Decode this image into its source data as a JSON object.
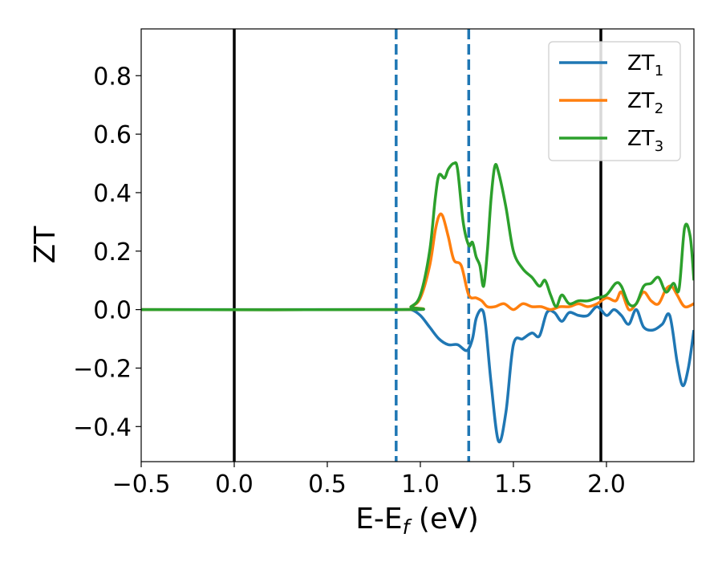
{
  "chart_data": {
    "type": "line",
    "title": "",
    "xlabel": "E-E",
    "xlabel_sub": "f",
    "xlabel_unit": " (eV)",
    "ylabel": "ZT",
    "xlim": [
      -0.5,
      2.47
    ],
    "ylim": [
      -0.52,
      0.96
    ],
    "xticks": [
      -0.5,
      0.0,
      0.5,
      1.0,
      1.5,
      2.0
    ],
    "xtick_labels": [
      "−0.5",
      "0.0",
      "0.5",
      "1.0",
      "1.5",
      "2.0"
    ],
    "yticks": [
      -0.4,
      -0.2,
      0.0,
      0.2,
      0.4,
      0.6,
      0.8
    ],
    "ytick_labels": [
      "−0.4",
      "−0.2",
      "0.0",
      "0.2",
      "0.4",
      "0.6",
      "0.8"
    ],
    "grid": false,
    "legend": {
      "placement": "top-right"
    },
    "vlines": [
      {
        "x": 0.0,
        "style": "solid",
        "color": "#000000"
      },
      {
        "x": 1.97,
        "style": "solid",
        "color": "#000000"
      },
      {
        "x": 0.87,
        "style": "dashed",
        "color": "#1f77b4"
      },
      {
        "x": 1.26,
        "style": "dashed",
        "color": "#1f77b4"
      }
    ],
    "series": [
      {
        "name": "ZT",
        "sub": "1",
        "color": "#1f77b4",
        "x": [
          -0.5,
          0.9,
          0.95,
          1.0,
          1.05,
          1.1,
          1.15,
          1.2,
          1.25,
          1.28,
          1.3,
          1.33,
          1.35,
          1.38,
          1.42,
          1.46,
          1.5,
          1.55,
          1.6,
          1.64,
          1.68,
          1.72,
          1.76,
          1.8,
          1.85,
          1.9,
          1.95,
          2.0,
          2.04,
          2.08,
          2.12,
          2.16,
          2.2,
          2.25,
          2.3,
          2.34,
          2.38,
          2.41,
          2.44,
          2.47
        ],
        "y": [
          0.0,
          0.0,
          0.0,
          -0.02,
          -0.06,
          -0.1,
          -0.12,
          -0.12,
          -0.14,
          -0.1,
          -0.03,
          0.0,
          -0.05,
          -0.25,
          -0.45,
          -0.35,
          -0.12,
          -0.1,
          -0.08,
          -0.09,
          -0.01,
          -0.01,
          -0.04,
          -0.01,
          -0.02,
          -0.02,
          0.01,
          -0.02,
          0.0,
          -0.02,
          -0.05,
          0.0,
          -0.06,
          -0.07,
          -0.05,
          -0.02,
          -0.18,
          -0.26,
          -0.2,
          -0.07
        ]
      },
      {
        "name": "ZT",
        "sub": "2",
        "color": "#ff7f0e",
        "x": [
          -0.5,
          0.9,
          0.95,
          1.0,
          1.05,
          1.08,
          1.1,
          1.12,
          1.15,
          1.18,
          1.22,
          1.26,
          1.3,
          1.33,
          1.36,
          1.4,
          1.45,
          1.5,
          1.55,
          1.6,
          1.65,
          1.7,
          1.75,
          1.8,
          1.85,
          1.9,
          1.95,
          2.0,
          2.05,
          2.08,
          2.12,
          2.16,
          2.2,
          2.24,
          2.28,
          2.32,
          2.35,
          2.38,
          2.42,
          2.47
        ],
        "y": [
          0.0,
          0.0,
          0.01,
          0.04,
          0.15,
          0.27,
          0.32,
          0.32,
          0.25,
          0.17,
          0.15,
          0.05,
          0.04,
          0.03,
          0.01,
          0.01,
          0.02,
          0.0,
          0.02,
          0.01,
          0.01,
          0.0,
          0.01,
          0.01,
          0.02,
          0.01,
          0.02,
          0.04,
          0.03,
          0.06,
          0.0,
          0.02,
          0.06,
          0.03,
          0.02,
          0.07,
          0.08,
          0.05,
          0.01,
          0.02
        ]
      },
      {
        "name": "ZT",
        "sub": "3",
        "color": "#2ca02c",
        "x": [
          -0.5,
          0.9,
          0.95,
          1.0,
          1.05,
          1.08,
          1.1,
          1.13,
          1.15,
          1.18,
          1.2,
          1.23,
          1.26,
          1.28,
          1.3,
          1.32,
          1.34,
          1.36,
          1.38,
          1.4,
          1.42,
          1.46,
          1.5,
          1.55,
          1.6,
          1.64,
          1.67,
          1.7,
          1.73,
          1.76,
          1.8,
          1.85,
          1.9,
          1.95,
          2.0,
          2.05,
          2.08,
          2.12,
          2.16,
          2.2,
          2.24,
          2.28,
          2.32,
          2.36,
          2.39,
          2.42,
          2.45,
          2.47
        ],
        "y": [
          0.0,
          0.0,
          0.01,
          0.05,
          0.2,
          0.38,
          0.46,
          0.45,
          0.48,
          0.5,
          0.48,
          0.3,
          0.22,
          0.23,
          0.18,
          0.15,
          0.08,
          0.2,
          0.38,
          0.49,
          0.47,
          0.35,
          0.2,
          0.14,
          0.11,
          0.08,
          0.1,
          0.05,
          0.01,
          0.05,
          0.02,
          0.03,
          0.03,
          0.04,
          0.05,
          0.09,
          0.08,
          0.02,
          0.02,
          0.08,
          0.09,
          0.11,
          0.06,
          0.09,
          0.07,
          0.28,
          0.25,
          0.1
        ]
      }
    ]
  }
}
